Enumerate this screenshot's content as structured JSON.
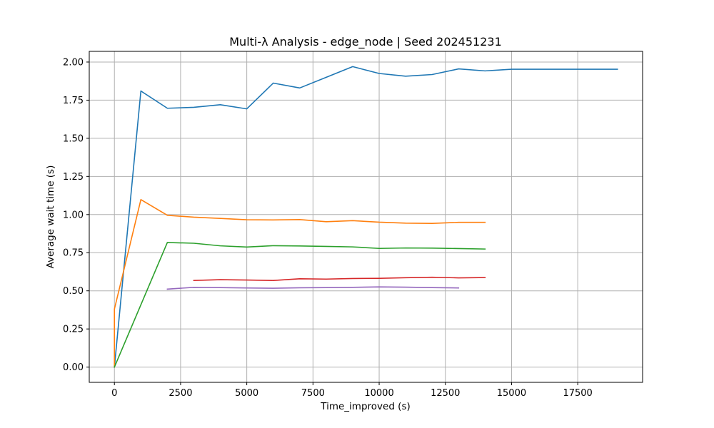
{
  "chart_data": {
    "type": "line",
    "title": "Multi-λ Analysis - edge_node | Seed 202451231",
    "xlabel": "Time_improved (s)",
    "ylabel": "Average wait time (s)",
    "xlim": [
      -950,
      19950
    ],
    "ylim": [
      -0.1,
      2.07
    ],
    "xticks": [
      0,
      2500,
      5000,
      7500,
      10000,
      12500,
      15000,
      17500
    ],
    "xtick_labels": [
      "0",
      "2500",
      "5000",
      "7500",
      "10000",
      "12500",
      "15000",
      "17500"
    ],
    "yticks": [
      0.0,
      0.25,
      0.5,
      0.75,
      1.0,
      1.25,
      1.5,
      1.75,
      2.0
    ],
    "ytick_labels": [
      "0.00",
      "0.25",
      "0.50",
      "0.75",
      "1.00",
      "1.25",
      "1.50",
      "1.75",
      "2.00"
    ],
    "grid": true,
    "series": [
      {
        "color": "#1f77b4",
        "x": [
          0,
          1000,
          2000,
          3000,
          4000,
          5000,
          6000,
          7000,
          8000,
          9000,
          10000,
          11000,
          12000,
          13000,
          14000,
          15000,
          16000,
          17000,
          18000,
          19000
        ],
        "y": [
          0.0,
          1.81,
          1.697,
          1.703,
          1.72,
          1.693,
          1.862,
          1.83,
          1.9,
          1.97,
          1.925,
          1.907,
          1.918,
          1.955,
          1.942,
          1.953,
          1.953,
          1.953,
          1.953,
          1.953
        ]
      },
      {
        "color": "#ff7f0e",
        "x": [
          0,
          0,
          1000,
          2000,
          3000,
          4000,
          5000,
          6000,
          7000,
          8000,
          9000,
          10000,
          11000,
          12000,
          13000,
          14000
        ],
        "y": [
          0.0,
          0.38,
          1.098,
          0.995,
          0.983,
          0.975,
          0.966,
          0.965,
          0.967,
          0.953,
          0.96,
          0.95,
          0.944,
          0.942,
          0.949,
          0.949
        ]
      },
      {
        "color": "#2ca02c",
        "x": [
          0,
          2000,
          3000,
          4000,
          5000,
          6000,
          7000,
          8000,
          9000,
          10000,
          11000,
          12000,
          13000,
          14000
        ],
        "y": [
          0.0,
          0.817,
          0.812,
          0.795,
          0.787,
          0.796,
          0.794,
          0.791,
          0.788,
          0.778,
          0.781,
          0.78,
          0.777,
          0.774
        ]
      },
      {
        "color": "#d62728",
        "x": [
          3000,
          4000,
          5000,
          6000,
          7000,
          8000,
          9000,
          10000,
          11000,
          12000,
          13000,
          14000
        ],
        "y": [
          0.568,
          0.573,
          0.571,
          0.568,
          0.579,
          0.577,
          0.581,
          0.582,
          0.586,
          0.589,
          0.585,
          0.587
        ]
      },
      {
        "color": "#9467bd",
        "x": [
          2000,
          3000,
          4000,
          5000,
          6000,
          7000,
          8000,
          9000,
          10000,
          11000,
          12000,
          13000
        ],
        "y": [
          0.511,
          0.523,
          0.521,
          0.519,
          0.517,
          0.52,
          0.521,
          0.523,
          0.526,
          0.524,
          0.521,
          0.519
        ]
      }
    ]
  }
}
